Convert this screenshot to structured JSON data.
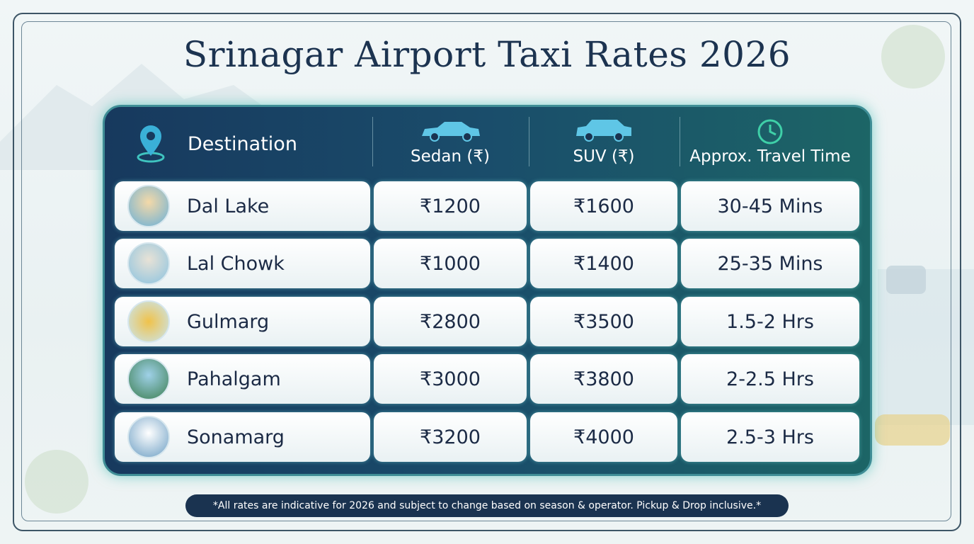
{
  "title": "Srinagar Airport Taxi Rates 2026",
  "table": {
    "headers": [
      "Destination",
      "Sedan (₹)",
      "SUV (₹)",
      "Approx. Travel Time"
    ],
    "rows": [
      [
        "Dal Lake",
        "₹1200",
        "₹1600",
        "30-45 Mins"
      ],
      [
        "Lal Chowk",
        "₹1000",
        "₹1400",
        "25-35 Mins"
      ],
      [
        "Gulmarg",
        "₹2800",
        "₹3500",
        "1.5-2 Hrs"
      ],
      [
        "Pahalgam",
        "₹3000",
        "₹3800",
        "2-2.5 Hrs"
      ],
      [
        "Sonamarg",
        "₹3200",
        "₹4000",
        "2.5-3 Hrs"
      ]
    ]
  },
  "footnote": "*All rates are indicative for 2026 and subject to change based on season & operator. Pickup & Drop inclusive.*"
}
